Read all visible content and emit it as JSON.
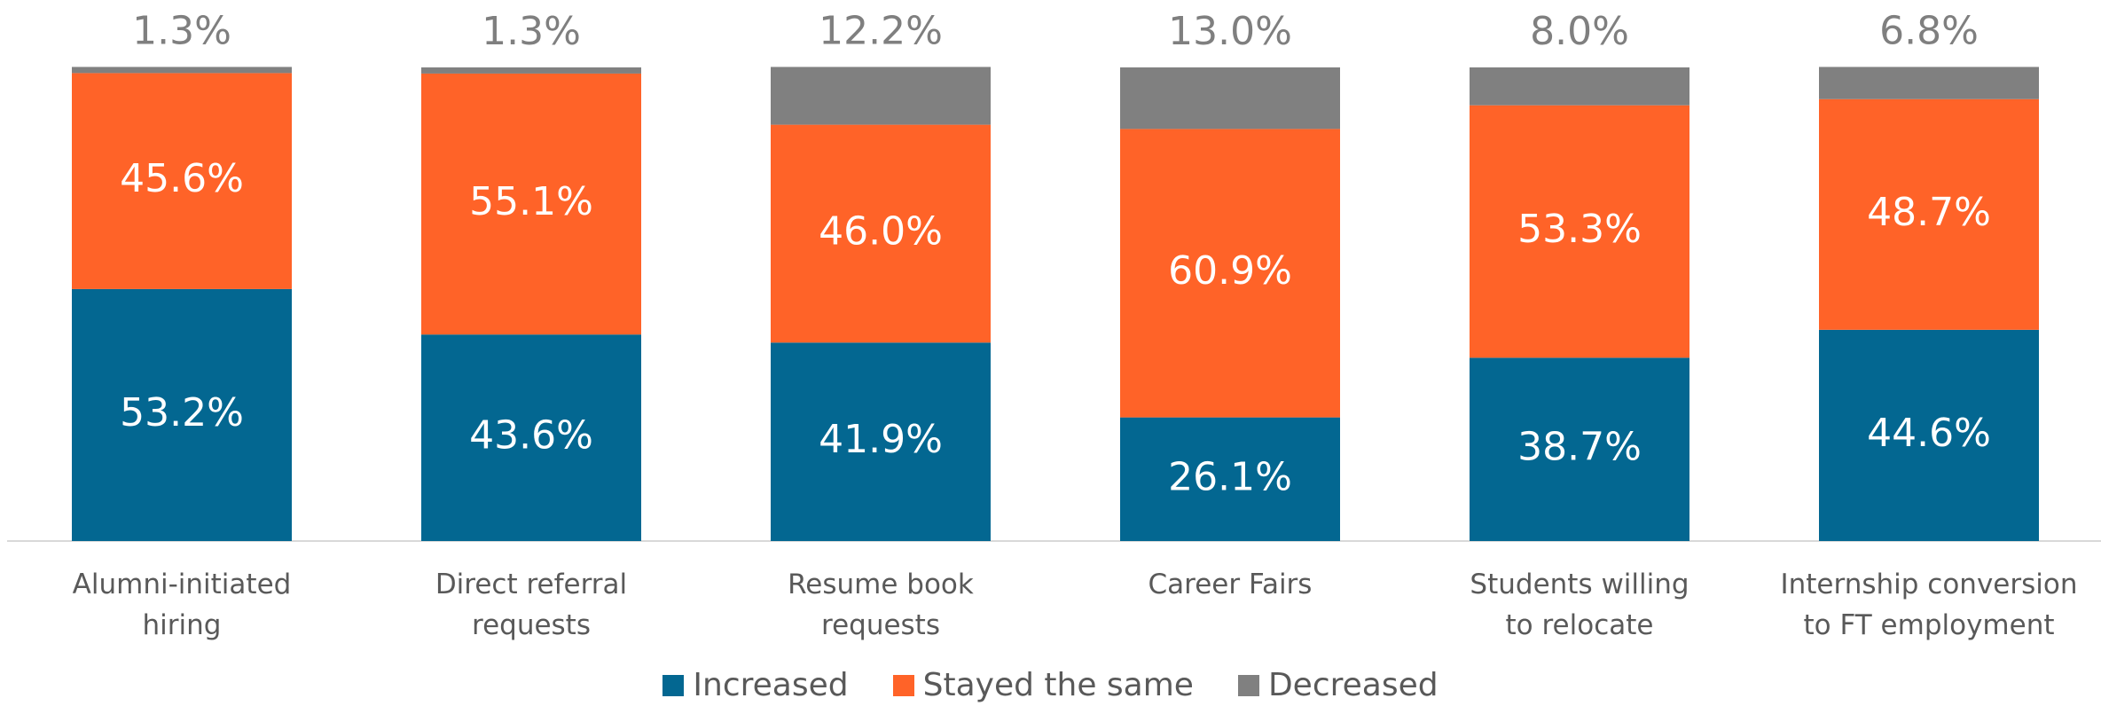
{
  "chart_data": {
    "type": "stacked_bar",
    "categories": [
      "Alumni-initiated\nhiring",
      "Direct referral\nrequests",
      "Resume book\nrequests",
      "Career Fairs",
      "Students willing\nto relocate",
      "Internship conversion\nto FT employment"
    ],
    "series": [
      {
        "name": "Increased",
        "color": "#036791",
        "values": [
          53.2,
          43.6,
          41.9,
          26.1,
          38.7,
          44.6
        ],
        "value_labels": [
          "53.2%",
          "43.6%",
          "41.9%",
          "26.1%",
          "38.7%",
          "44.6%"
        ]
      },
      {
        "name": "Stayed the same",
        "color": "#ff6328",
        "values": [
          45.6,
          55.1,
          46.0,
          60.9,
          53.3,
          48.7
        ],
        "value_labels": [
          "45.6%",
          "55.1%",
          "46.0%",
          "60.9%",
          "53.3%",
          "48.7%"
        ]
      },
      {
        "name": "Decreased",
        "color": "#808080",
        "values": [
          1.3,
          1.3,
          12.2,
          13.0,
          8.0,
          6.8
        ],
        "value_labels": [
          "1.3%",
          "1.3%",
          "12.2%",
          "13.0%",
          "8.0%",
          "6.8%"
        ]
      }
    ],
    "ylim": [
      0,
      100
    ],
    "grid": false,
    "legend": "bottom"
  }
}
